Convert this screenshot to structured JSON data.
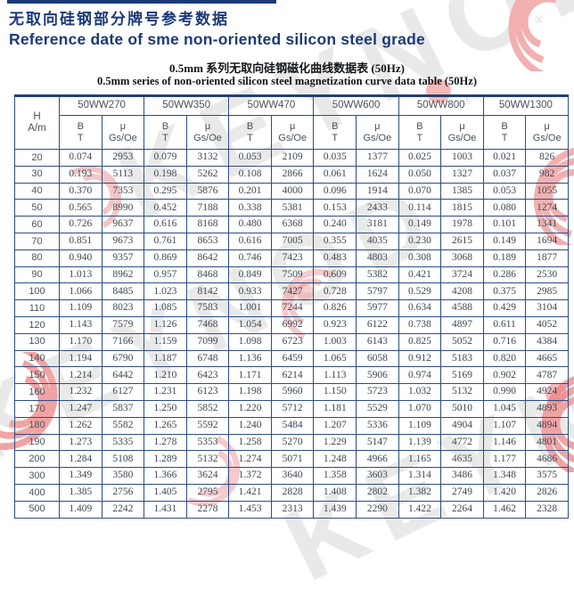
{
  "page": {
    "title_cn": "无取向硅钢部分牌号参考数据",
    "title_en": "Reference date of sme non-oriented silicon steel grade",
    "subtitle_cn": "0.5mm 系列无取向硅钢磁化曲线数据表 (50Hz)",
    "subtitle_en": "0.5mm series of non-oriented silicon steel magnetization curve data table (50Hz)"
  },
  "colors": {
    "title_navy": "#1c3a78",
    "border_navy": "#2e4d85",
    "watermark_pink": "#f0a3a3",
    "watermark_gray": "#c9c9c9"
  },
  "watermark": {
    "brand": "KEYNOD",
    "registered_mark": "®"
  },
  "table": {
    "row_header": {
      "line1": "H",
      "line2": "A/m"
    },
    "grades": [
      "50WW270",
      "50WW350",
      "50WW470",
      "50WW600",
      "50WW800",
      "50WW1300"
    ],
    "subcols": {
      "b_line1": "B",
      "b_line2": "T",
      "mu_line1": "μ",
      "mu_line2": "Gs/Oe"
    },
    "rows": [
      {
        "h": "20",
        "values": [
          "0.074",
          "2953",
          "0.079",
          "3132",
          "0.053",
          "2109",
          "0.035",
          "1377",
          "0.025",
          "1003",
          "0.021",
          "826"
        ]
      },
      {
        "h": "30",
        "values": [
          "0.193",
          "5113",
          "0.198",
          "5262",
          "0.108",
          "2866",
          "0.061",
          "1624",
          "0.050",
          "1327",
          "0.037",
          "982"
        ]
      },
      {
        "h": "40",
        "values": [
          "0.370",
          "7353",
          "0.295",
          "5876",
          "0.201",
          "4000",
          "0.096",
          "1914",
          "0.070",
          "1385",
          "0.053",
          "1055"
        ]
      },
      {
        "h": "50",
        "values": [
          "0.565",
          "8990",
          "0.452",
          "7188",
          "0.338",
          "5381",
          "0.153",
          "2433",
          "0.114",
          "1815",
          "0.080",
          "1274"
        ]
      },
      {
        "h": "60",
        "values": [
          "0.726",
          "9637",
          "0.616",
          "8168",
          "0.480",
          "6368",
          "0.240",
          "3181",
          "0.149",
          "1978",
          "0.101",
          "1341"
        ]
      },
      {
        "h": "70",
        "values": [
          "0.851",
          "9673",
          "0.761",
          "8653",
          "0.616",
          "7005",
          "0.355",
          "4035",
          "0.230",
          "2615",
          "0.149",
          "1694"
        ]
      },
      {
        "h": "80",
        "values": [
          "0.940",
          "9357",
          "0.869",
          "8642",
          "0.746",
          "7423",
          "0.483",
          "4803",
          "0.308",
          "3068",
          "0.189",
          "1877"
        ]
      },
      {
        "h": "90",
        "values": [
          "1.013",
          "8962",
          "0.957",
          "8468",
          "0.849",
          "7509",
          "0.609",
          "5382",
          "0.421",
          "3724",
          "0.286",
          "2530"
        ]
      },
      {
        "h": "100",
        "values": [
          "1.066",
          "8485",
          "1.023",
          "8142",
          "0.933",
          "7427",
          "0.728",
          "5797",
          "0.529",
          "4208",
          "0.375",
          "2985"
        ]
      },
      {
        "h": "110",
        "values": [
          "1.109",
          "8023",
          "1.085",
          "7583",
          "1.001",
          "7244",
          "0.826",
          "5977",
          "0.634",
          "4588",
          "0.429",
          "3104"
        ]
      },
      {
        "h": "120",
        "values": [
          "1.143",
          "7579",
          "1.126",
          "7468",
          "1.054",
          "6992",
          "0.923",
          "6122",
          "0.738",
          "4897",
          "0.611",
          "4052"
        ]
      },
      {
        "h": "130",
        "values": [
          "1.170",
          "7166",
          "1.159",
          "7099",
          "1.098",
          "6723",
          "1.003",
          "6143",
          "0.825",
          "5052",
          "0.716",
          "4384"
        ]
      },
      {
        "h": "140",
        "values": [
          "1.194",
          "6790",
          "1.187",
          "6748",
          "1.136",
          "6459",
          "1.065",
          "6058",
          "0.912",
          "5183",
          "0.820",
          "4665"
        ]
      },
      {
        "h": "150",
        "values": [
          "1.214",
          "6442",
          "1.210",
          "6423",
          "1.171",
          "6214",
          "1.113",
          "5906",
          "0.974",
          "5169",
          "0.902",
          "4787"
        ]
      },
      {
        "h": "160",
        "values": [
          "1.232",
          "6127",
          "1.231",
          "6123",
          "1.198",
          "5960",
          "1.150",
          "5723",
          "1.032",
          "5132",
          "0.990",
          "4924"
        ]
      },
      {
        "h": "170",
        "values": [
          "1.247",
          "5837",
          "1.250",
          "5852",
          "1.220",
          "5712",
          "1.181",
          "5529",
          "1.070",
          "5010",
          "1.045",
          "4893"
        ]
      },
      {
        "h": "180",
        "values": [
          "1.262",
          "5582",
          "1.265",
          "5592",
          "1.240",
          "5484",
          "1.207",
          "5336",
          "1.109",
          "4904",
          "1.107",
          "4894"
        ]
      },
      {
        "h": "190",
        "values": [
          "1.273",
          "5335",
          "1.278",
          "5353",
          "1.258",
          "5270",
          "1.229",
          "5147",
          "1.139",
          "4772",
          "1.146",
          "4801"
        ]
      },
      {
        "h": "200",
        "values": [
          "1.284",
          "5108",
          "1.289",
          "5132",
          "1.274",
          "5071",
          "1.248",
          "4966",
          "1.165",
          "4635",
          "1.177",
          "4686"
        ]
      },
      {
        "h": "300",
        "values": [
          "1.349",
          "3580",
          "1.366",
          "3624",
          "1.372",
          "3640",
          "1.358",
          "3603",
          "1.314",
          "3486",
          "1.348",
          "3575"
        ]
      },
      {
        "h": "400",
        "values": [
          "1.385",
          "2756",
          "1.405",
          "2795",
          "1.421",
          "2828",
          "1.408",
          "2802",
          "1.382",
          "2749",
          "1.420",
          "2826"
        ]
      },
      {
        "h": "500",
        "values": [
          "1.409",
          "2242",
          "1.431",
          "2278",
          "1.453",
          "2313",
          "1.439",
          "2290",
          "1.422",
          "2264",
          "1.462",
          "2328"
        ]
      }
    ]
  }
}
